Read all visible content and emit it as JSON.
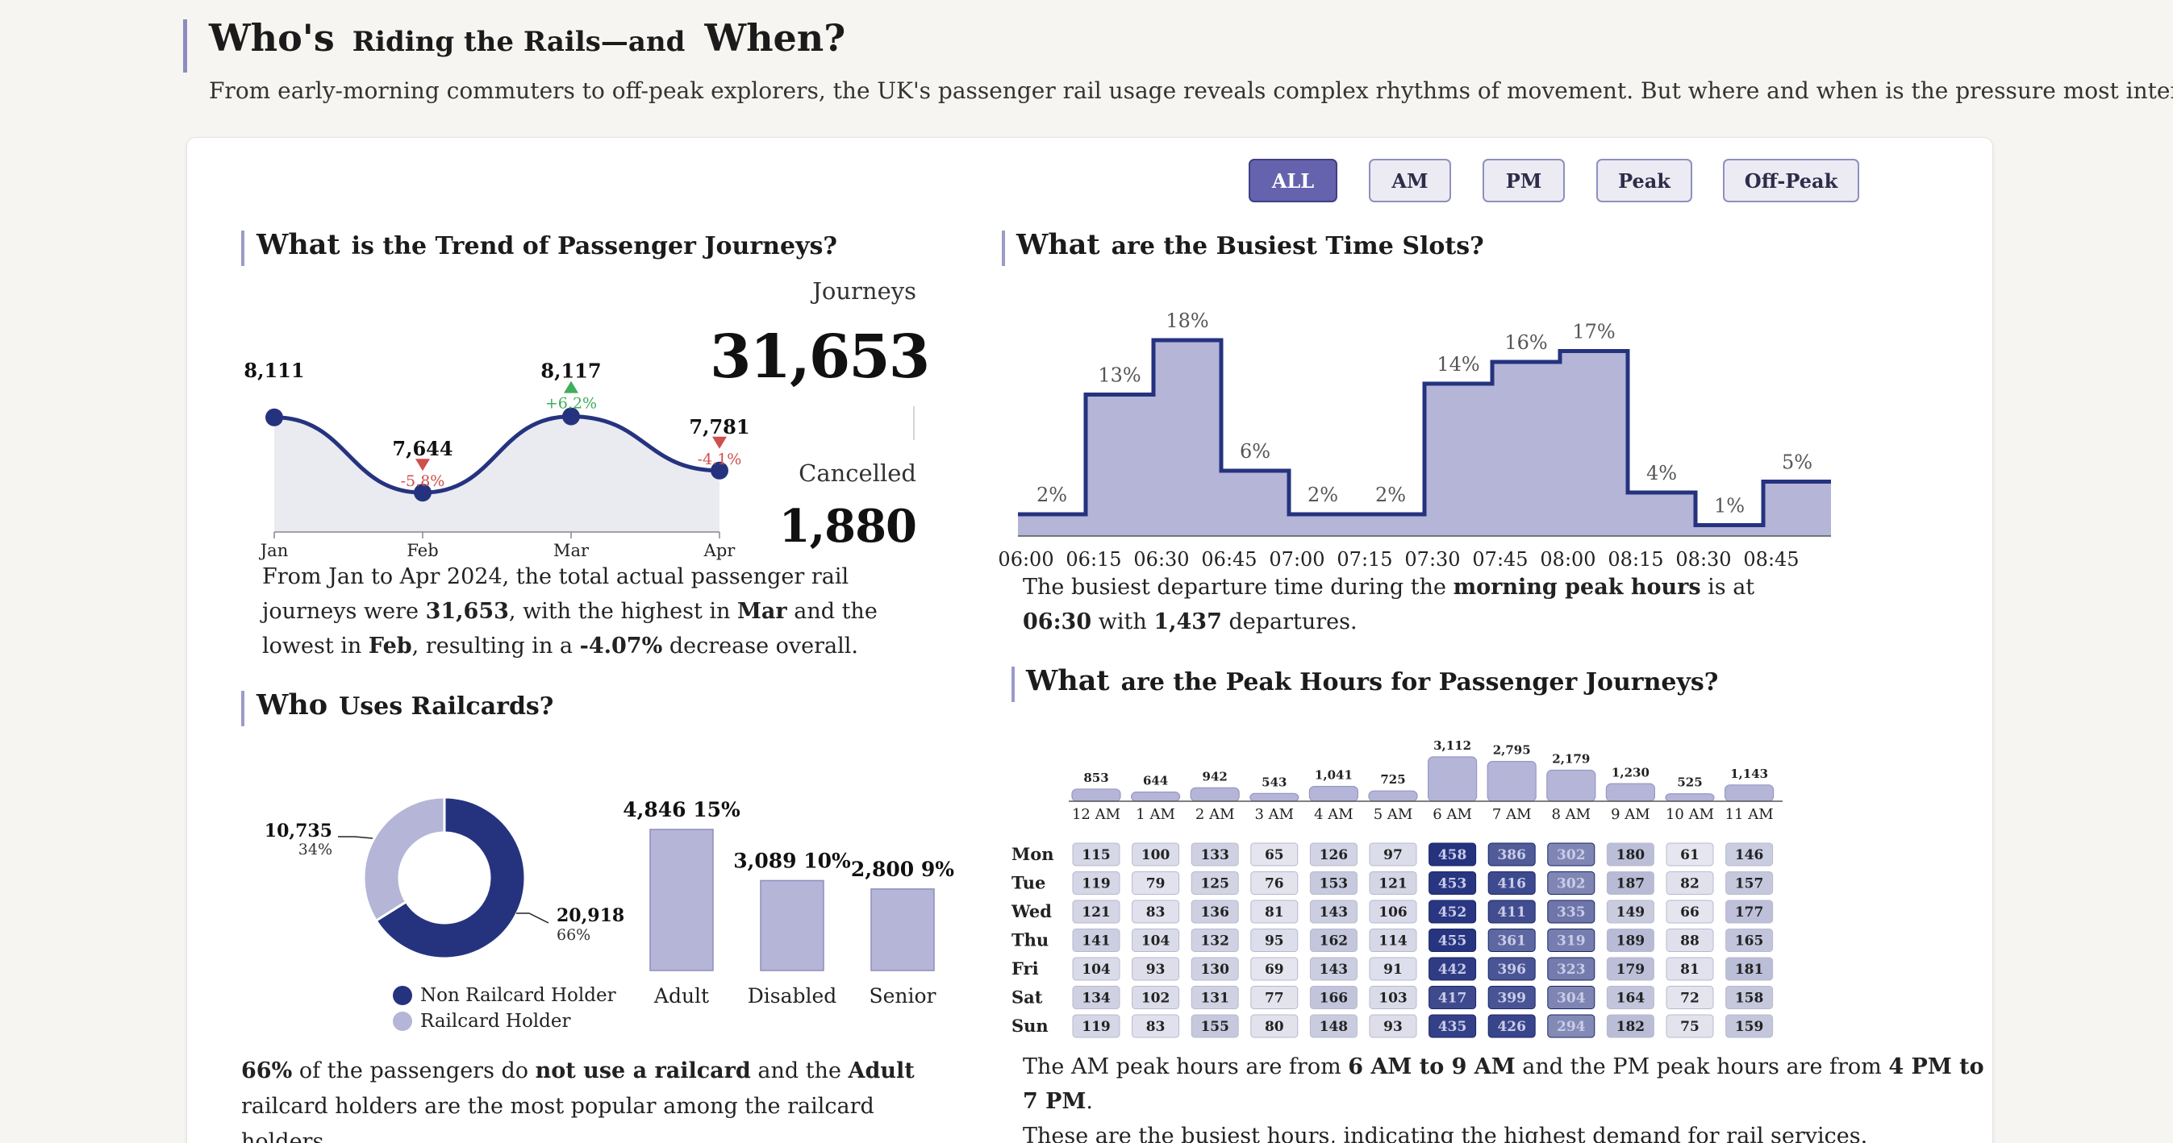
{
  "header": {
    "title_word1": "Who's",
    "title_mid": "Riding the Rails—and",
    "title_word2": "When?",
    "subtitle": "From early-morning commuters to off-peak explorers, the UK's passenger rail usage reveals complex rhythms of movement. But where and when is the pressure most intense?"
  },
  "filters": [
    "ALL",
    "AM",
    "PM",
    "Peak",
    "Off-Peak"
  ],
  "filter_selected": "ALL",
  "colors": {
    "navy": "#25337f",
    "lavender": "#b5b5d8",
    "area": "#eaeaf1",
    "up": "#3fae5a",
    "down": "#d0504c",
    "accent_bar": "#9b9bc9"
  },
  "trend": {
    "title_bold": "What",
    "title_rest": "is the Trend of Passenger Journeys?",
    "journeys_label": "Journeys",
    "journeys_value": "31,653",
    "cancelled_label": "Cancelled",
    "cancelled_value": "1,880",
    "para_1": "From Jan to Apr 2024, the total actual passenger rail journeys were",
    "para_total": "31,653",
    "para_2": ", with the highest in",
    "para_high": "Mar",
    "para_3": "and the lowest in",
    "para_low": "Feb",
    "para_4": ", resulting in a",
    "para_change": "-4.07%",
    "para_5": "decrease overall."
  },
  "busy": {
    "title_bold": "What",
    "title_rest": "are the Busiest Time Slots?",
    "para_1": "The busiest departure time during the",
    "para_bold": "morning peak hours",
    "para_2": "is at",
    "para_time": "06:30",
    "para_3": "with",
    "para_count": "1,437",
    "para_4": "departures."
  },
  "railcards": {
    "title_bold": "Who",
    "title_rest": "Uses Railcards?",
    "legend": [
      "Non Railcard Holder",
      "Railcard Holder"
    ],
    "para_pct": "66%",
    "para_1": "of the passengers do",
    "para_bold": "not use a railcard",
    "para_2": "and the",
    "para_adult": "Adult",
    "para_3": "railcard holders are the most popular among the railcard holders."
  },
  "peak": {
    "title_bold": "What",
    "title_rest": "are the Peak Hours for Passenger Journeys?",
    "para_1": "The AM peak hours are from",
    "para_am": "6 AM to 9 AM",
    "para_2": "and the PM peak hours are from",
    "para_pm": "4 PM to 7 PM",
    "para_3": ".",
    "para_line2": "These are the busiest hours, indicating the highest demand for rail services."
  },
  "chart_data": [
    {
      "type": "area",
      "name": "journeys-trend",
      "categories": [
        "Jan",
        "Feb",
        "Mar",
        "Apr"
      ],
      "values": [
        8111,
        7644,
        8117,
        7781
      ],
      "value_labels": [
        "8,111",
        "7,644",
        "8,117",
        "7,781"
      ],
      "changes": [
        "",
        "-5.8%",
        "+6.2%",
        "-4.1%"
      ],
      "ylim": [
        7400,
        8400
      ]
    },
    {
      "type": "bar",
      "name": "busiest-time-slots",
      "categories": [
        "06:00",
        "06:15",
        "06:30",
        "06:45",
        "07:00",
        "07:15",
        "07:30",
        "07:45",
        "08:00",
        "08:15",
        "08:30",
        "08:45"
      ],
      "values": [
        2,
        13,
        18,
        6,
        2,
        2,
        14,
        16,
        17,
        4,
        1,
        5
      ],
      "value_labels": [
        "2%",
        "13%",
        "18%",
        "6%",
        "2%",
        "2%",
        "14%",
        "16%",
        "17%",
        "4%",
        "1%",
        "5%"
      ],
      "ylim": [
        0,
        20
      ]
    },
    {
      "type": "pie",
      "name": "railcard-donut",
      "categories": [
        "Non Railcard Holder",
        "Railcard Holder"
      ],
      "values": [
        20918,
        10735
      ],
      "value_labels": [
        "20,918",
        "10,735"
      ],
      "percent_labels": [
        "66%",
        "34%"
      ]
    },
    {
      "type": "bar",
      "name": "railcard-types",
      "categories": [
        "Adult",
        "Disabled",
        "Senior"
      ],
      "values": [
        4846,
        3089,
        2800
      ],
      "value_labels": [
        "4,846 15%",
        "3,089 10%",
        "2,800 9%"
      ],
      "ylim": [
        0,
        5000
      ]
    },
    {
      "type": "bar",
      "name": "hourly-totals",
      "categories": [
        "12 AM",
        "1 AM",
        "2 AM",
        "3 AM",
        "4 AM",
        "5 AM",
        "6 AM",
        "7 AM",
        "8 AM",
        "9 AM",
        "10 AM",
        "11 AM"
      ],
      "values": [
        853,
        644,
        942,
        543,
        1041,
        725,
        3112,
        2795,
        2179,
        1230,
        525,
        1143
      ],
      "value_labels": [
        "853",
        "644",
        "942",
        "543",
        "1,041",
        "725",
        "3,112",
        "2,795",
        "2,179",
        "1,230",
        "525",
        "1,143"
      ]
    },
    {
      "type": "heatmap",
      "name": "weekday-hour-heatmap",
      "rows": [
        "Mon",
        "Tue",
        "Wed",
        "Thu",
        "Fri",
        "Sat",
        "Sun"
      ],
      "columns": [
        "12 AM",
        "1 AM",
        "2 AM",
        "3 AM",
        "4 AM",
        "5 AM",
        "6 AM",
        "7 AM",
        "8 AM",
        "9 AM",
        "10 AM",
        "11 AM"
      ],
      "values": [
        [
          115,
          100,
          133,
          65,
          126,
          97,
          458,
          386,
          302,
          180,
          61,
          146
        ],
        [
          119,
          79,
          125,
          76,
          153,
          121,
          453,
          416,
          302,
          187,
          82,
          157
        ],
        [
          121,
          83,
          136,
          81,
          143,
          106,
          452,
          411,
          335,
          149,
          66,
          177
        ],
        [
          141,
          104,
          132,
          95,
          162,
          114,
          455,
          361,
          319,
          189,
          88,
          165
        ],
        [
          104,
          93,
          130,
          69,
          143,
          91,
          442,
          396,
          323,
          179,
          81,
          181
        ],
        [
          134,
          102,
          131,
          77,
          166,
          103,
          417,
          399,
          304,
          164,
          72,
          158
        ],
        [
          119,
          83,
          155,
          80,
          148,
          93,
          435,
          426,
          294,
          182,
          75,
          159
        ]
      ]
    }
  ]
}
